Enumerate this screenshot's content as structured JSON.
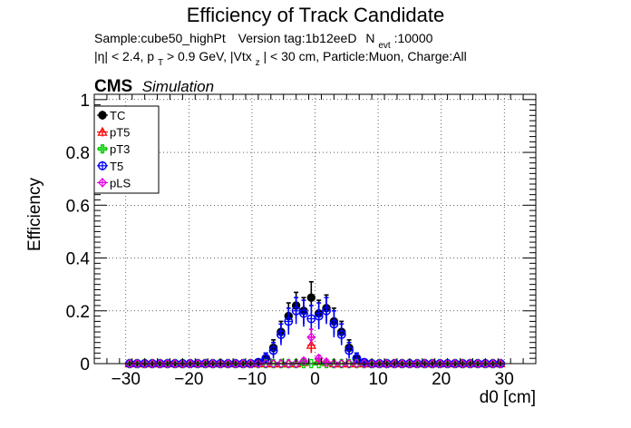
{
  "chart_data": {
    "type": "scatter",
    "title": "Efficiency of Track Candidate",
    "subtitle_line1": {
      "sample": "Sample:cube50_highPt",
      "version": "Version tag:1b12eeD",
      "nevt_prefix": "N",
      "nevt_sub": "evt",
      "nevt_value": ":10000"
    },
    "subtitle_line2": {
      "part1": "|η| < 2.4, p",
      "sub1": "T",
      "part2": " > 0.9 GeV, |Vtx",
      "sub2": "z",
      "part3": "| < 30 cm, Particle:Muon, Charge:All"
    },
    "cms_label": "CMS",
    "sim_label": "Simulation",
    "xlabel": "d0 [cm]",
    "ylabel": "Efficiency",
    "xlim": [
      -35,
      35
    ],
    "ylim": [
      0,
      1.02
    ],
    "xticks": [
      -30,
      -20,
      -10,
      0,
      10,
      20,
      30
    ],
    "xtick_labels": [
      "−30",
      "−20",
      "−10",
      "0",
      "10",
      "20",
      "30"
    ],
    "yticks": [
      0,
      0.2,
      0.4,
      0.6,
      0.8,
      1
    ],
    "ytick_labels": [
      "0",
      "0.2",
      "0.4",
      "0.6",
      "0.8",
      "1"
    ],
    "grid": true,
    "legend_position": "top-left",
    "x": [
      -29.4,
      -28.2,
      -27,
      -25.8,
      -24.6,
      -23.4,
      -22.2,
      -21,
      -19.8,
      -18.6,
      -17.4,
      -16.2,
      -15,
      -13.8,
      -12.6,
      -11.4,
      -10.2,
      -9,
      -7.8,
      -6.6,
      -5.4,
      -4.2,
      -3,
      -1.8,
      -0.6,
      0.6,
      1.8,
      3,
      4.2,
      5.4,
      6.6,
      7.8,
      9,
      10.2,
      11.4,
      12.6,
      13.8,
      15,
      16.2,
      17.4,
      18.6,
      19.8,
      21,
      22.2,
      23.4,
      24.6,
      25.8,
      27,
      28.2,
      29.4
    ],
    "series": [
      {
        "name": "TC",
        "color": "#000000",
        "marker": "filled-circle",
        "values": [
          0,
          0,
          0,
          0,
          0,
          0,
          0,
          0,
          0,
          0,
          0,
          0,
          0,
          0,
          0,
          0,
          0,
          0.005,
          0.02,
          0.06,
          0.12,
          0.18,
          0.22,
          0.2,
          0.25,
          0.19,
          0.21,
          0.16,
          0.12,
          0.06,
          0.02,
          0.005,
          0,
          0,
          0,
          0,
          0,
          0,
          0,
          0,
          0,
          0,
          0,
          0,
          0,
          0,
          0,
          0,
          0,
          0
        ],
        "errors": [
          0,
          0,
          0,
          0,
          0,
          0,
          0,
          0,
          0,
          0,
          0,
          0,
          0,
          0,
          0,
          0,
          0,
          0.01,
          0.02,
          0.03,
          0.04,
          0.05,
          0.05,
          0.05,
          0.06,
          0.05,
          0.05,
          0.05,
          0.04,
          0.03,
          0.02,
          0.01,
          0,
          0,
          0,
          0,
          0,
          0,
          0,
          0,
          0,
          0,
          0,
          0,
          0,
          0,
          0,
          0,
          0,
          0
        ]
      },
      {
        "name": "pT5",
        "color": "#ff0000",
        "marker": "open-triangle",
        "values": [
          0,
          0,
          0,
          0,
          0,
          0,
          0,
          0,
          0,
          0,
          0,
          0,
          0,
          0,
          0,
          0,
          0,
          0,
          0,
          0,
          0,
          0,
          0,
          0.005,
          0.07,
          0.01,
          0.005,
          0,
          0,
          0,
          0,
          0,
          0,
          0,
          0,
          0,
          0,
          0,
          0,
          0,
          0,
          0,
          0,
          0,
          0,
          0,
          0,
          0,
          0,
          0
        ],
        "errors": [
          0,
          0,
          0,
          0,
          0,
          0,
          0,
          0,
          0,
          0,
          0,
          0,
          0,
          0,
          0,
          0,
          0,
          0,
          0,
          0,
          0,
          0,
          0,
          0.01,
          0.03,
          0.01,
          0.01,
          0,
          0,
          0,
          0,
          0,
          0,
          0,
          0,
          0,
          0,
          0,
          0,
          0,
          0,
          0,
          0,
          0,
          0,
          0,
          0,
          0,
          0,
          0
        ]
      },
      {
        "name": "pT3",
        "color": "#00cc00",
        "marker": "open-cross",
        "values": [
          0,
          0,
          0,
          0,
          0,
          0,
          0,
          0,
          0,
          0,
          0,
          0,
          0,
          0,
          0,
          0,
          0,
          0,
          0,
          0,
          0,
          0,
          0,
          0,
          0,
          0,
          0,
          0,
          0,
          0,
          0,
          0,
          0,
          0,
          0,
          0,
          0,
          0,
          0,
          0,
          0,
          0,
          0,
          0,
          0,
          0,
          0,
          0,
          0,
          0
        ],
        "errors": [
          0,
          0,
          0,
          0,
          0,
          0,
          0,
          0,
          0,
          0,
          0,
          0,
          0,
          0,
          0,
          0,
          0,
          0,
          0,
          0,
          0,
          0,
          0,
          0,
          0,
          0,
          0,
          0,
          0,
          0,
          0,
          0,
          0,
          0,
          0,
          0,
          0,
          0,
          0,
          0,
          0,
          0,
          0,
          0,
          0,
          0,
          0,
          0,
          0,
          0
        ]
      },
      {
        "name": "T5",
        "color": "#0000ff",
        "marker": "open-circle",
        "values": [
          0,
          0,
          0,
          0,
          0,
          0,
          0,
          0,
          0,
          0,
          0,
          0,
          0,
          0,
          0,
          0,
          0,
          0.005,
          0.02,
          0.05,
          0.11,
          0.16,
          0.2,
          0.19,
          0.17,
          0.18,
          0.2,
          0.15,
          0.11,
          0.05,
          0.02,
          0.005,
          0,
          0,
          0,
          0,
          0,
          0,
          0,
          0,
          0,
          0,
          0,
          0,
          0,
          0,
          0,
          0,
          0,
          0
        ],
        "errors": [
          0,
          0,
          0,
          0,
          0,
          0,
          0,
          0,
          0,
          0,
          0,
          0,
          0,
          0,
          0,
          0,
          0,
          0.01,
          0.02,
          0.03,
          0.04,
          0.05,
          0.05,
          0.05,
          0.05,
          0.05,
          0.05,
          0.05,
          0.04,
          0.03,
          0.02,
          0.01,
          0,
          0,
          0,
          0,
          0,
          0,
          0,
          0,
          0,
          0,
          0,
          0,
          0,
          0,
          0,
          0,
          0,
          0
        ]
      },
      {
        "name": "pLS",
        "color": "#e000e0",
        "marker": "open-star",
        "values": [
          0,
          0,
          0,
          0,
          0,
          0,
          0,
          0,
          0,
          0,
          0,
          0,
          0,
          0,
          0,
          0,
          0,
          0,
          0,
          0,
          0,
          0,
          0,
          0.01,
          0.1,
          0.02,
          0.005,
          0,
          0,
          0,
          0,
          0,
          0,
          0,
          0,
          0,
          0,
          0,
          0,
          0,
          0,
          0,
          0,
          0,
          0,
          0,
          0,
          0,
          0,
          0
        ],
        "errors": [
          0,
          0,
          0,
          0,
          0,
          0,
          0,
          0,
          0,
          0,
          0,
          0,
          0,
          0,
          0,
          0,
          0,
          0,
          0,
          0,
          0,
          0,
          0,
          0.01,
          0.03,
          0.01,
          0.01,
          0,
          0,
          0,
          0,
          0,
          0,
          0,
          0,
          0,
          0,
          0,
          0,
          0,
          0,
          0,
          0,
          0,
          0,
          0,
          0,
          0,
          0,
          0
        ]
      }
    ]
  }
}
